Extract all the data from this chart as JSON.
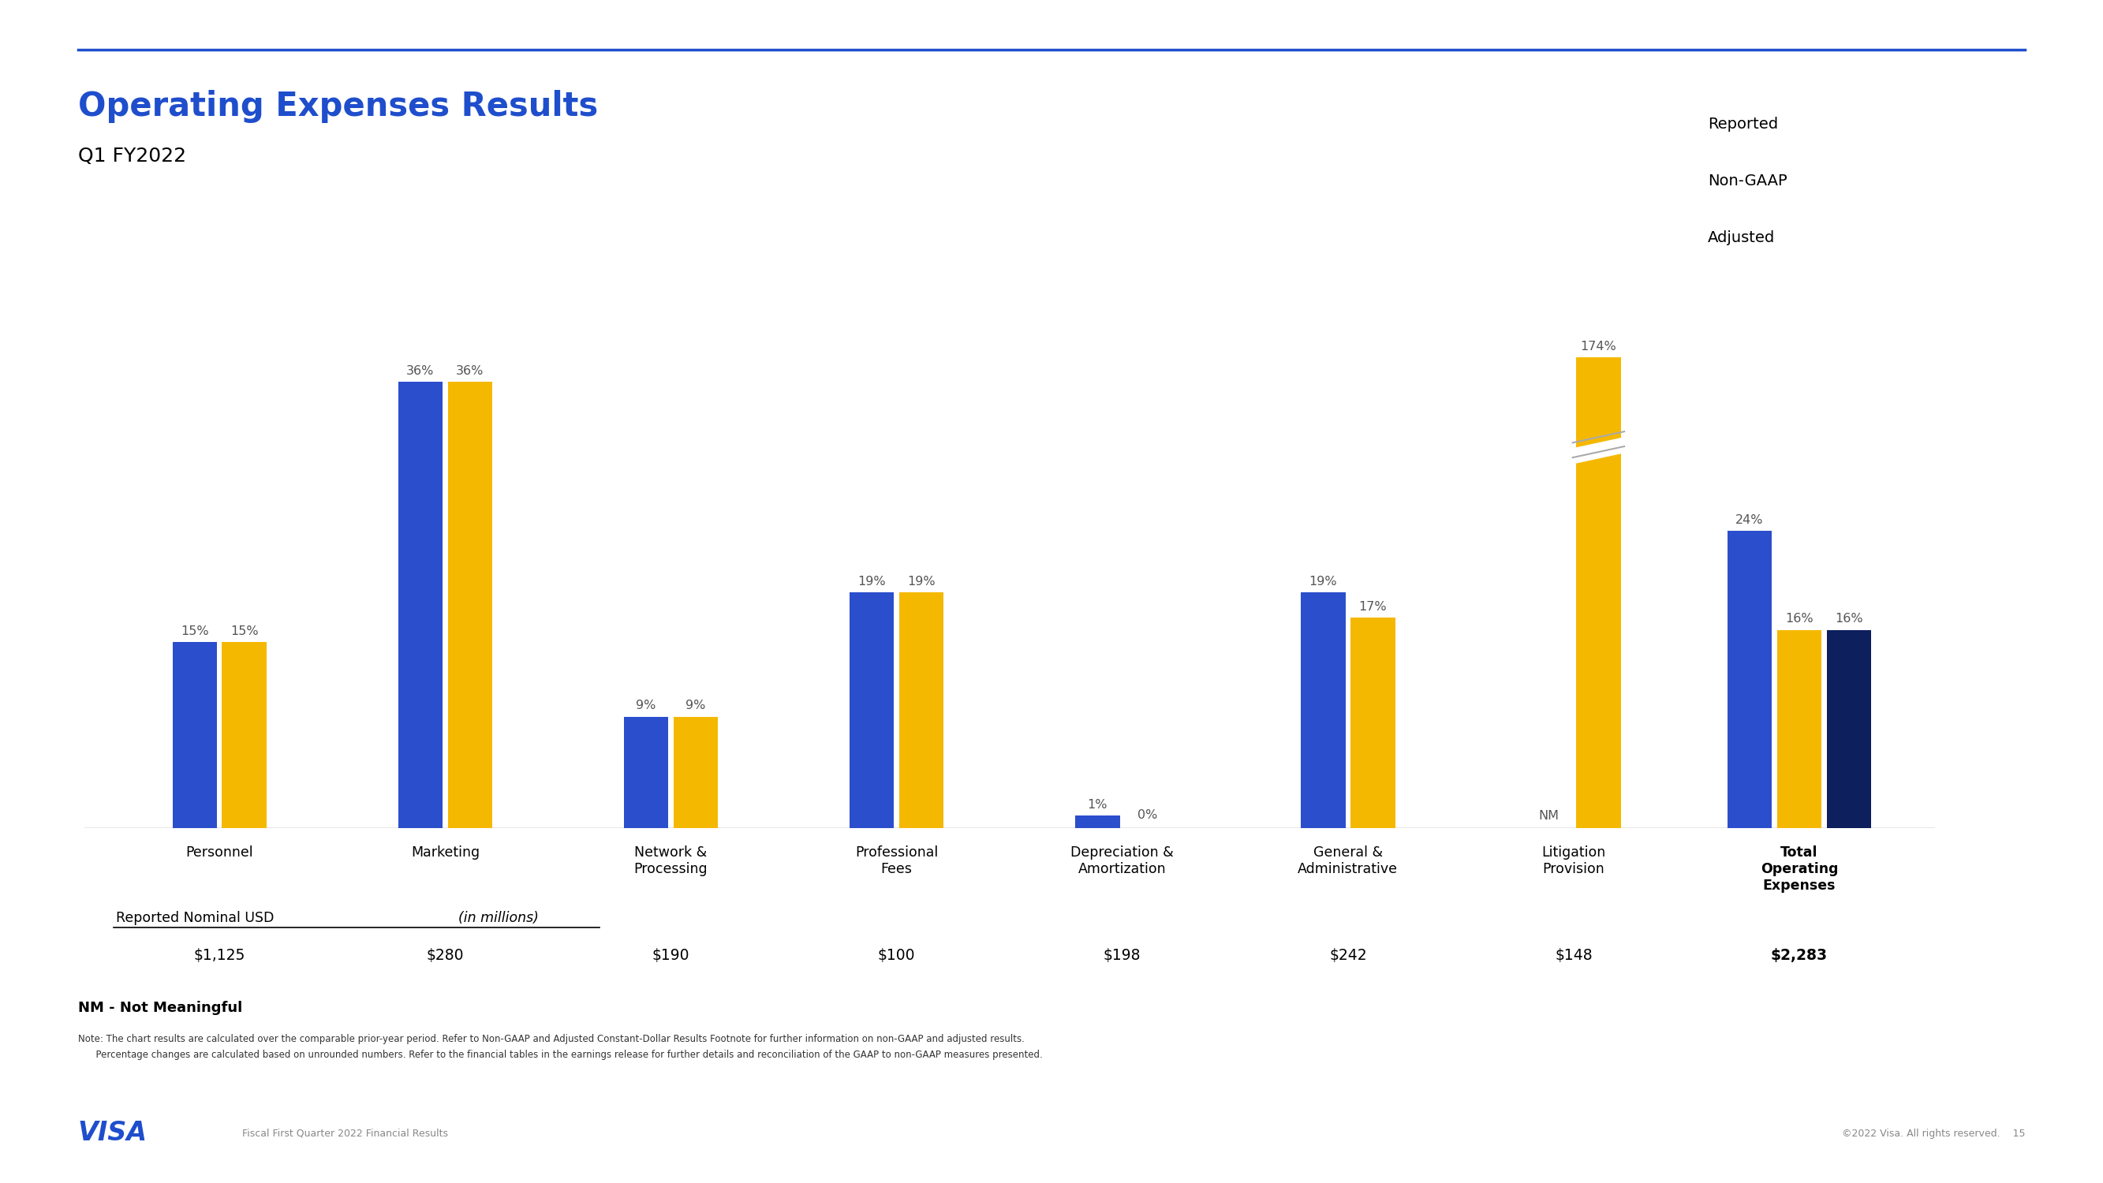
{
  "title": "Operating Expenses Results",
  "subtitle": "Q1 FY2022",
  "title_color": "#1F4ECC",
  "subtitle_color": "#000000",
  "bg_color": "#FFFFFF",
  "bar_color_reported": "#2B4ECC",
  "bar_color_nongaap": "#F5B800",
  "bar_color_adjusted": "#0D1F5C",
  "categories": [
    "Personnel",
    "Marketing",
    "Network &\nProcessing",
    "Professional\nFees",
    "Depreciation &\nAmortization",
    "General &\nAdministrative",
    "Litigation\nProvision",
    "Total\nOperating\nExpenses"
  ],
  "reported_pct": [
    15,
    36,
    9,
    19,
    1,
    19,
    null,
    24
  ],
  "nongaap_pct": [
    15,
    36,
    9,
    19,
    0,
    17,
    174,
    16
  ],
  "adjusted_pct": [
    null,
    null,
    null,
    null,
    null,
    null,
    null,
    16
  ],
  "reported_vals": [
    "$1,125",
    "$280",
    "$190",
    "$100",
    "$198",
    "$242",
    "$148",
    "$2,283"
  ],
  "nm_label": "NM",
  "nm_index": 6,
  "legend_labels": [
    "Reported",
    "Non-GAAP",
    "Adjusted"
  ],
  "reported_nominal_label": "Reported Nominal USD",
  "reported_nominal_italic": "(in millions)",
  "nm_note": "NM - Not Meaningful",
  "note_line1": "Note: The chart results are calculated over the comparable prior-year period. Refer to Non-GAAP and Adjusted Constant-Dollar Results Footnote for further information on non-GAAP and adjusted results.",
  "note_line2": "      Percentage changes are calculated based on unrounded numbers. Refer to the financial tables in the earnings release for further details and reconciliation of the GAAP to non-GAAP measures presented.",
  "footer_left": "Fiscal First Quarter 2022 Financial Results",
  "footer_right": "©2022 Visa. All rights reserved.    15",
  "top_line_color": "#1F4ECC",
  "axis_line_color": "#888888",
  "bar_width": 0.22,
  "max_display": 42,
  "broken_bar_reported_lit": 26,
  "broken_bar_nongaap_lit": 38
}
